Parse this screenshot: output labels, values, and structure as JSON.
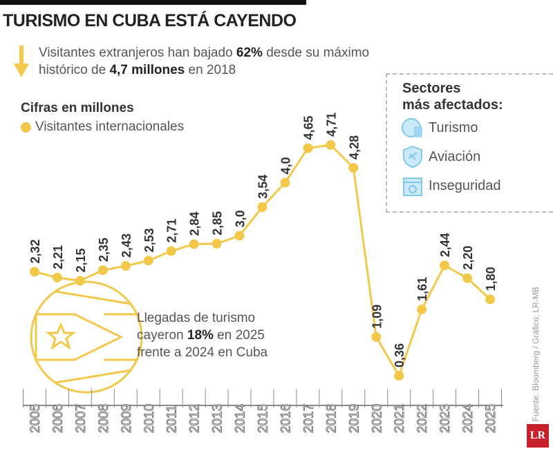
{
  "title": "TURISMO EN CUBA ESTÁ CAYENDO",
  "subtitle": {
    "pre": "Visitantes extranjeros han bajado ",
    "pct": "62%",
    "mid": " desde su máximo",
    "line2_pre": "histórico de ",
    "peak": "4,7 millones",
    "line2_post": " en 2018"
  },
  "units": "Cifras en millones",
  "sectors": {
    "title1": "Sectores",
    "title2": "más afectados:",
    "items": [
      {
        "label": "Turismo",
        "icon": "globe-luggage-icon"
      },
      {
        "label": "Aviación",
        "icon": "shield-plane-icon"
      },
      {
        "label": "Inseguridad",
        "icon": "calendar-icon"
      }
    ]
  },
  "note": {
    "l1": "Llegadas de turismo",
    "l2_pre": "cayeron ",
    "l2_pct": "18%",
    "l2_post": " en 2025",
    "l3": "frente a 2024 en Cuba"
  },
  "source": "Fuente: Bloomberg / Gráfico: LR-MB",
  "logo": "LR",
  "colors": {
    "series": "#f2c84b",
    "icons": "#7fc8ec",
    "logo": "#c8202a"
  },
  "chart_data": {
    "type": "line",
    "title": "TURISMO EN CUBA ESTÁ CAYENDO",
    "ylabel": "Cifras en millones",
    "categories": [
      "2005",
      "2006",
      "2007",
      "2008",
      "2009",
      "2010",
      "2011",
      "2012",
      "2013",
      "2014",
      "2015",
      "2016",
      "2017",
      "2018",
      "2019",
      "2020",
      "2021",
      "2022",
      "2023",
      "2024",
      "2025"
    ],
    "series": [
      {
        "name": "Visitantes internacionales",
        "values": [
          2.32,
          2.21,
          2.15,
          2.35,
          2.43,
          2.53,
          2.71,
          2.84,
          2.85,
          3.0,
          3.54,
          4.0,
          4.65,
          4.71,
          4.28,
          1.09,
          0.36,
          1.61,
          2.44,
          2.2,
          1.8
        ],
        "labels": [
          "2,32",
          "2,21",
          "2,15",
          "2,35",
          "2,43",
          "2,53",
          "2,71",
          "2,84",
          "2,85",
          "3,0",
          "3,54",
          "4,0",
          "4,65",
          "4,71",
          "4,28",
          "1,09",
          "0,36",
          "1,61",
          "2,44",
          "2,20",
          "1,80"
        ]
      }
    ],
    "grid": false,
    "legend": "top-left"
  }
}
